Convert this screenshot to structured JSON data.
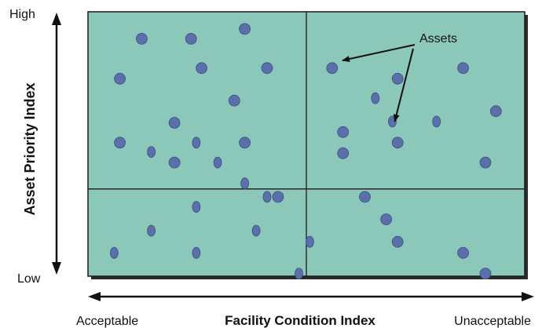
{
  "labels": {
    "y_high": "High",
    "y_low": "Low",
    "y_axis": "Asset Priority Index",
    "x_left": "Acceptable",
    "x_axis": "Facility Condition Index",
    "x_right": "Unacceptable",
    "callout": "Assets"
  },
  "colors": {
    "plot_fill": "#8cc8b9",
    "dot": "#5b6faa",
    "dot_shadow": "#3c4f86",
    "grid_line": "#1a1a1a",
    "frame_shadow": "#2b2b2b",
    "text": "#111111"
  },
  "chart_data": {
    "type": "scatter",
    "xlabel": "Facility Condition Index",
    "ylabel": "Asset Priority Index",
    "x_range": [
      "Acceptable",
      "Unacceptable"
    ],
    "y_range": [
      "Low",
      "High"
    ],
    "quadrant_split": {
      "x": 0.5,
      "y": 0.33
    },
    "points": [
      {
        "x": 0.123,
        "y": 0.898,
        "shape": "round"
      },
      {
        "x": 0.236,
        "y": 0.898,
        "shape": "round"
      },
      {
        "x": 0.359,
        "y": 0.935,
        "shape": "round"
      },
      {
        "x": 0.073,
        "y": 0.747,
        "shape": "round"
      },
      {
        "x": 0.26,
        "y": 0.787,
        "shape": "round"
      },
      {
        "x": 0.41,
        "y": 0.787,
        "shape": "round"
      },
      {
        "x": 0.335,
        "y": 0.664,
        "shape": "round"
      },
      {
        "x": 0.198,
        "y": 0.58,
        "shape": "round"
      },
      {
        "x": 0.073,
        "y": 0.505,
        "shape": "round"
      },
      {
        "x": 0.145,
        "y": 0.47,
        "shape": "oval"
      },
      {
        "x": 0.248,
        "y": 0.505,
        "shape": "oval"
      },
      {
        "x": 0.359,
        "y": 0.505,
        "shape": "round"
      },
      {
        "x": 0.198,
        "y": 0.43,
        "shape": "round"
      },
      {
        "x": 0.297,
        "y": 0.43,
        "shape": "oval"
      },
      {
        "x": 0.359,
        "y": 0.351,
        "shape": "oval"
      },
      {
        "x": 0.559,
        "y": 0.787,
        "shape": "round"
      },
      {
        "x": 0.709,
        "y": 0.747,
        "shape": "round"
      },
      {
        "x": 0.658,
        "y": 0.673,
        "shape": "oval"
      },
      {
        "x": 0.859,
        "y": 0.787,
        "shape": "round"
      },
      {
        "x": 0.934,
        "y": 0.624,
        "shape": "round"
      },
      {
        "x": 0.584,
        "y": 0.545,
        "shape": "round"
      },
      {
        "x": 0.697,
        "y": 0.585,
        "shape": "oval"
      },
      {
        "x": 0.798,
        "y": 0.585,
        "shape": "oval"
      },
      {
        "x": 0.709,
        "y": 0.505,
        "shape": "round"
      },
      {
        "x": 0.584,
        "y": 0.465,
        "shape": "round"
      },
      {
        "x": 0.91,
        "y": 0.43,
        "shape": "round"
      },
      {
        "x": 0.41,
        "y": 0.3,
        "shape": "oval"
      },
      {
        "x": 0.435,
        "y": 0.3,
        "shape": "round"
      },
      {
        "x": 0.248,
        "y": 0.262,
        "shape": "oval"
      },
      {
        "x": 0.145,
        "y": 0.172,
        "shape": "oval"
      },
      {
        "x": 0.385,
        "y": 0.172,
        "shape": "oval"
      },
      {
        "x": 0.06,
        "y": 0.088,
        "shape": "oval"
      },
      {
        "x": 0.248,
        "y": 0.088,
        "shape": "oval"
      },
      {
        "x": 0.508,
        "y": 0.13,
        "shape": "oval"
      },
      {
        "x": 0.483,
        "y": 0.01,
        "shape": "oval"
      },
      {
        "x": 0.634,
        "y": 0.3,
        "shape": "round"
      },
      {
        "x": 0.683,
        "y": 0.215,
        "shape": "round"
      },
      {
        "x": 0.709,
        "y": 0.13,
        "shape": "round"
      },
      {
        "x": 0.859,
        "y": 0.088,
        "shape": "round"
      },
      {
        "x": 0.91,
        "y": 0.01,
        "shape": "round"
      }
    ],
    "callout_targets": [
      {
        "x": 0.572,
        "y": 0.81
      },
      {
        "x": 0.697,
        "y": 0.585
      }
    ]
  }
}
